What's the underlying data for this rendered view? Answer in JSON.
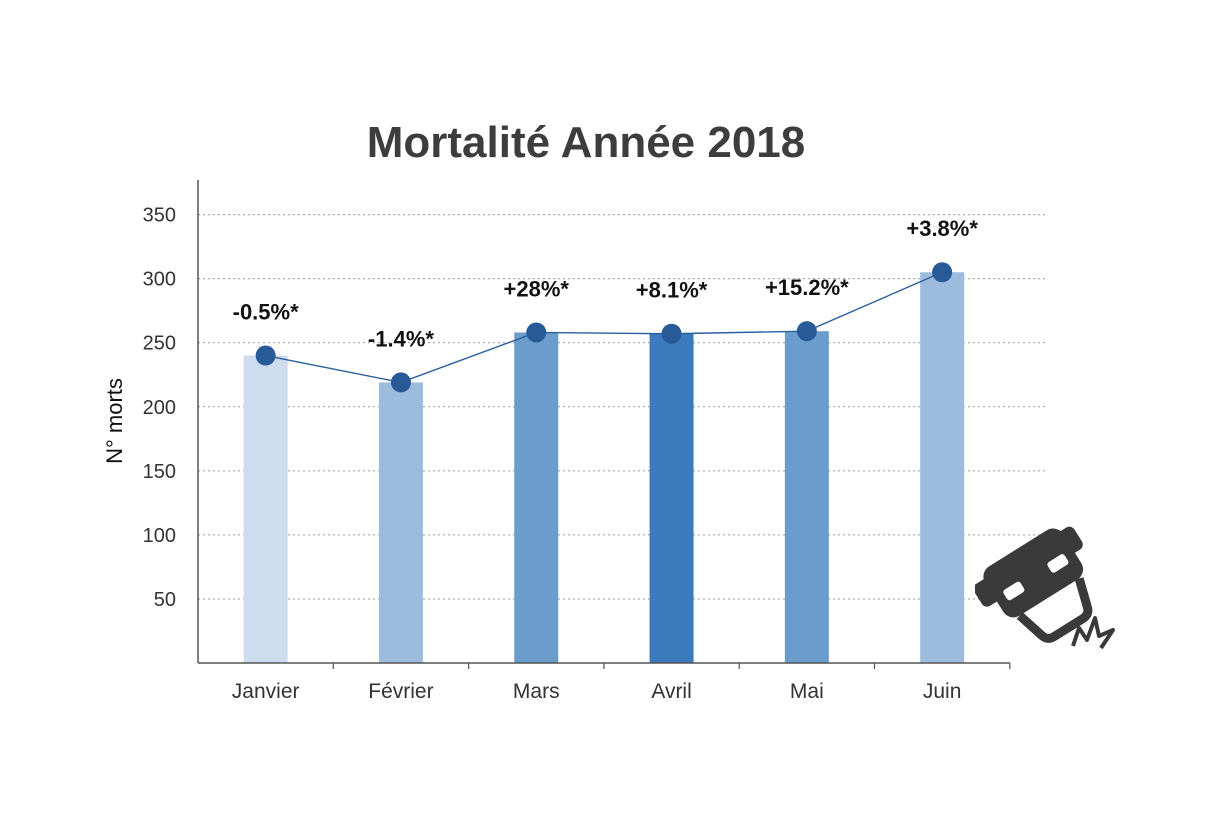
{
  "chart_data": {
    "type": "bar",
    "title": "Mortalité Année 2018",
    "xlabel": "",
    "ylabel": "N° morts",
    "categories": [
      "Janvier",
      "Février",
      "Mars",
      "Avril",
      "Mai",
      "Juin"
    ],
    "values": [
      240,
      219,
      258,
      257,
      259,
      305
    ],
    "line_overlay": true,
    "data_labels": [
      "-0.5%*",
      "-1.4%*",
      "+28%*",
      "+8.1%*",
      "+15.2%*",
      "+3.8%*"
    ],
    "bar_colors": [
      "#cddcee",
      "#9dbcdd",
      "#6b9dcc",
      "#3a7abd",
      "#6b9dcc",
      "#9dbcdd"
    ],
    "line_color": "#2a5f9e",
    "marker_color": "#285a98",
    "yticks": [
      50,
      100,
      150,
      200,
      250,
      300,
      350
    ],
    "ylim": [
      0,
      377
    ],
    "grid": true
  },
  "icon": "car-crash-icon"
}
